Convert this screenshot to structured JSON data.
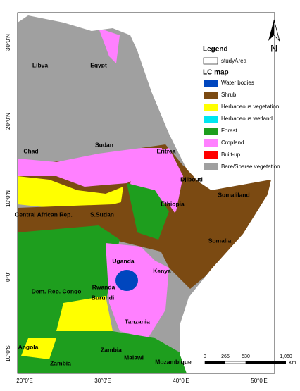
{
  "lat_labels": [
    "30°0'N",
    "20°0'N",
    "10°0'N",
    "0°0'",
    "10°0'S"
  ],
  "lon_labels": [
    "20°0'E",
    "30°0'E",
    "40°0'E",
    "50°0'E"
  ],
  "countries": [
    "Libya",
    "Egypt",
    "Sudan",
    "Chad",
    "Eritrea",
    "Djibouti",
    "Somaliland",
    "Ethiopia",
    "S.Sudan",
    "Central African Rep.",
    "Somalia",
    "Uganda",
    "Kenya",
    "Dem. Rep. Congo",
    "Rwanda",
    "Burundi",
    "Tanzania",
    "Angola",
    "Zambia",
    "Zambia",
    "Malawi",
    "Mozambique"
  ],
  "legend": {
    "title": "Legend",
    "study_area": "studyArea",
    "lc_title": "LC map",
    "items": [
      {
        "label": "Water bodies",
        "color": "#0046be"
      },
      {
        "label": "Shrub",
        "color": "#7b4a12"
      },
      {
        "label": "Herbaceous vegetation",
        "color": "#ffff00"
      },
      {
        "label": "Herbaceous wetland",
        "color": "#00e6f0"
      },
      {
        "label": "Forest",
        "color": "#1e9e1e"
      },
      {
        "label": "Cropland",
        "color": "#ff80ff"
      },
      {
        "label": "Built-up",
        "color": "#ff0000"
      },
      {
        "label": "Bare/Sparse vegetation",
        "color": "#a0a0a0"
      }
    ]
  },
  "scale_bar": {
    "labels": [
      "0",
      "265",
      "530",
      "1,060"
    ],
    "unit": "Km"
  },
  "north": "N"
}
